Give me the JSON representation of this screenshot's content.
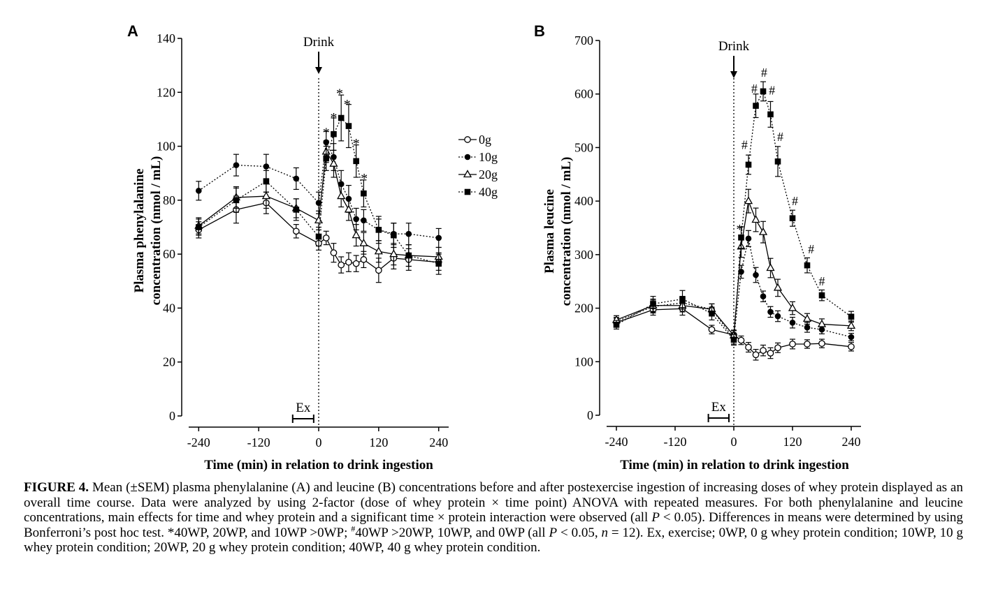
{
  "chart_data": [
    {
      "panel": "A",
      "type": "line",
      "ylabel_lines": [
        "Plasma phenylalanine",
        "concentration (nmol / mL)"
      ],
      "xlabel": "Time (min) in relation to drink ingestion",
      "xlim": [
        -260,
        260
      ],
      "ylim": [
        0,
        140
      ],
      "xticks": [
        -240,
        -120,
        0,
        120,
        240
      ],
      "yticks": [
        0,
        20,
        40,
        60,
        80,
        100,
        120,
        140
      ],
      "grid": false,
      "legend_position": "right",
      "drink_label": "Drink",
      "drink_x": 0,
      "ex_label": "Ex",
      "ex_range": [
        -52,
        -10
      ],
      "series": [
        {
          "name": "0g",
          "marker": "circle-open",
          "line": "solid",
          "x": [
            -240,
            -165,
            -105,
            -45,
            0,
            15,
            30,
            45,
            60,
            75,
            90,
            120,
            150,
            180,
            240
          ],
          "y": [
            69,
            76.5,
            79,
            68.5,
            64,
            66,
            60.5,
            56,
            57,
            56.5,
            58,
            54,
            58.5,
            58,
            57
          ],
          "err": [
            3,
            5,
            4,
            2.5,
            2.5,
            2.5,
            3.5,
            3,
            3.5,
            3,
            3,
            4.5,
            4,
            4,
            3
          ]
        },
        {
          "name": "10g",
          "marker": "circle-filled",
          "line": "dotted",
          "x": [
            -240,
            -165,
            -105,
            -45,
            0,
            15,
            30,
            45,
            60,
            75,
            90,
            120,
            150,
            180,
            240
          ],
          "y": [
            83.5,
            93,
            92.5,
            88,
            79,
            101.5,
            96,
            86,
            80.5,
            73,
            72.5,
            69,
            67.5,
            67.5,
            66
          ],
          "err": [
            3.5,
            4,
            4.5,
            4,
            4,
            4,
            5,
            5,
            5,
            4,
            4,
            4,
            4,
            4,
            3.5
          ]
        },
        {
          "name": "20g",
          "marker": "triangle-open",
          "line": "solid",
          "x": [
            -240,
            -165,
            -105,
            -45,
            0,
            15,
            30,
            45,
            60,
            75,
            90,
            120,
            150,
            180,
            240
          ],
          "y": [
            70.5,
            81,
            81.5,
            77,
            72.5,
            98,
            93.5,
            81.5,
            76.5,
            67,
            64,
            61,
            60,
            59.5,
            59
          ],
          "err": [
            3,
            4,
            4.5,
            3.5,
            3.5,
            4,
            5,
            4,
            4,
            4,
            4,
            4,
            4,
            4,
            3.5
          ]
        },
        {
          "name": "40g",
          "marker": "square-filled",
          "line": "dotted",
          "x": [
            -240,
            -165,
            -105,
            -45,
            0,
            15,
            30,
            45,
            60,
            75,
            90,
            120,
            150,
            180,
            240
          ],
          "y": [
            70,
            80,
            87,
            76.5,
            66.5,
            95.5,
            104.5,
            110.5,
            107.5,
            94.5,
            82.5,
            69,
            67,
            59.5,
            56.5
          ],
          "err": [
            3,
            4.5,
            4,
            4,
            3.5,
            4.5,
            6,
            8.5,
            8,
            6,
            5,
            5,
            4.5,
            4,
            4
          ]
        }
      ],
      "annotations": [
        {
          "text": "*",
          "x": 15,
          "y": 106
        },
        {
          "text": "*",
          "x": 30,
          "y": 111.5
        },
        {
          "text": "*",
          "x": 42,
          "y": 120.5
        },
        {
          "text": "*",
          "x": 57,
          "y": 116.5
        },
        {
          "text": "*",
          "x": 75,
          "y": 102
        },
        {
          "text": "*",
          "x": 91,
          "y": 89
        }
      ]
    },
    {
      "panel": "B",
      "type": "line",
      "ylabel_lines": [
        "Plasma leucine",
        "concentration (nmol / mL)"
      ],
      "xlabel": "Time (min) in relation to drink ingestion",
      "xlim": [
        -260,
        260
      ],
      "ylim": [
        0,
        700
      ],
      "xticks": [
        -240,
        -120,
        0,
        120,
        240
      ],
      "yticks": [
        0,
        100,
        200,
        300,
        400,
        500,
        600,
        700
      ],
      "grid": false,
      "drink_label": "Drink",
      "drink_x": 0,
      "ex_label": "Ex",
      "ex_range": [
        -52,
        -10
      ],
      "series": [
        {
          "name": "0g",
          "marker": "circle-open",
          "line": "solid",
          "x": [
            -240,
            -165,
            -105,
            -45,
            0,
            15,
            30,
            45,
            60,
            75,
            90,
            120,
            150,
            180,
            240
          ],
          "y": [
            173,
            197,
            199,
            160,
            150,
            140,
            127,
            113,
            121,
            116,
            126,
            133,
            133,
            134,
            128
          ],
          "err": [
            8,
            10,
            12,
            8,
            8,
            8,
            9,
            10,
            10,
            10,
            9,
            9,
            8,
            8,
            8
          ]
        },
        {
          "name": "10g",
          "marker": "circle-filled",
          "line": "dotted",
          "x": [
            -240,
            -165,
            -105,
            -45,
            0,
            15,
            30,
            45,
            60,
            75,
            90,
            120,
            150,
            180,
            240
          ],
          "y": [
            175,
            203,
            210,
            198,
            143,
            268,
            330,
            262,
            222,
            193,
            185,
            173,
            164,
            160,
            146
          ],
          "err": [
            8,
            12,
            12,
            10,
            10,
            12,
            15,
            14,
            10,
            10,
            10,
            10,
            9,
            8,
            7
          ]
        },
        {
          "name": "20g",
          "marker": "triangle-open",
          "line": "solid",
          "x": [
            -240,
            -165,
            -105,
            -45,
            0,
            15,
            30,
            45,
            60,
            75,
            90,
            120,
            150,
            180,
            240
          ],
          "y": [
            178,
            205,
            205,
            198,
            149,
            315,
            400,
            365,
            342,
            275,
            238,
            200,
            180,
            170,
            167
          ],
          "err": [
            8,
            12,
            12,
            10,
            10,
            20,
            22,
            22,
            20,
            18,
            16,
            12,
            10,
            10,
            9
          ]
        },
        {
          "name": "40g",
          "marker": "square-filled",
          "line": "dotted",
          "x": [
            -240,
            -165,
            -105,
            -45,
            0,
            15,
            30,
            45,
            60,
            75,
            90,
            120,
            150,
            180,
            240
          ],
          "y": [
            169,
            208,
            217,
            190,
            141,
            332,
            468,
            578,
            605,
            562,
            474,
            368,
            280,
            224,
            184
          ],
          "err": [
            8,
            14,
            16,
            12,
            10,
            20,
            18,
            22,
            18,
            24,
            28,
            15,
            14,
            10,
            10
          ]
        }
      ],
      "annotations": [
        {
          "text": "*",
          "x": 12,
          "y": 352
        },
        {
          "text": "#",
          "x": 22,
          "y": 505
        },
        {
          "text": "#",
          "x": 42,
          "y": 610
        },
        {
          "text": "#",
          "x": 62,
          "y": 640
        },
        {
          "text": "#",
          "x": 78,
          "y": 607
        },
        {
          "text": "#",
          "x": 95,
          "y": 520
        },
        {
          "text": "#",
          "x": 125,
          "y": 400
        },
        {
          "text": "#",
          "x": 158,
          "y": 310
        },
        {
          "text": "#",
          "x": 180,
          "y": 250
        }
      ]
    }
  ],
  "caption": {
    "label": "FIGURE 4.",
    "parts": [
      " Mean (±SEM) plasma phenylalanine (A) and leucine (B) concentrations before and after postexercise ingestion of increasing doses of whey protein displayed as an overall time course. Data were analyzed by using 2-factor (dose of whey protein × time point) ANOVA with repeated measures. For both phenylalanine and leucine concentrations, main effects for time and whey protein and a significant time × protein interaction were observed (all ",
      "P",
      " < 0.05). Differences in means were determined by using Bonferroni’s post hoc test. *40WP, 20WP, and 10WP >0WP; ",
      "#",
      "40WP >20WP, 10WP, and 0WP (all ",
      "P",
      " < 0.05, ",
      "n",
      " = 12). Ex, exercise; 0WP, 0 g whey protein condition; 10WP, 10 g whey protein condition; 20WP, 20 g whey protein condition; 40WP, 40 g whey protein condition."
    ]
  }
}
